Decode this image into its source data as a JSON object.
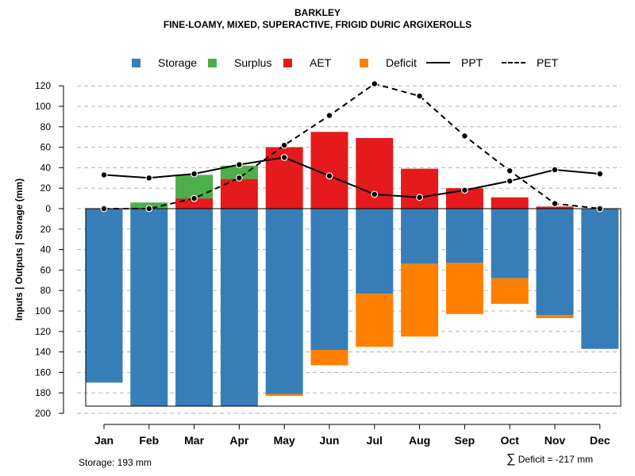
{
  "title": "BARKLEY",
  "subtitle": "FINE-LOAMY, MIXED, SUPERACTIVE, FRIGID DURIC ARGIXEROLLS",
  "legend": {
    "storage": "Storage",
    "surplus": "Surplus",
    "aet": "AET",
    "deficit": "Deficit",
    "ppt": "PPT",
    "pet": "PET"
  },
  "colors": {
    "storage": "#377EB8",
    "surplus": "#4DAF4A",
    "aet": "#E41A1C",
    "deficit": "#FF7F00",
    "grid": "#b0b0b0"
  },
  "footer": {
    "storage_note": "Storage: 193 mm",
    "deficit_note": "Deficit = -217 mm",
    "sum_symbol": "∑"
  },
  "chart_data": {
    "type": "bar",
    "title": "BARKLEY",
    "subtitle": "FINE-LOAMY, MIXED, SUPERACTIVE, FRIGID DURIC ARGIXEROLLS",
    "ylabel": "Inputs | Outputs | Storage     (mm)",
    "xlabel": "",
    "ylim": [
      -200,
      130
    ],
    "yticks": [
      120,
      100,
      80,
      60,
      40,
      20,
      0,
      -20,
      -40,
      -60,
      -80,
      -100,
      -120,
      -140,
      -160,
      -180,
      -200
    ],
    "ytick_labels": [
      "120",
      "100",
      "80",
      "60",
      "40",
      "20",
      "0",
      "20",
      "40",
      "60",
      "80",
      "100",
      "120",
      "140",
      "160",
      "180",
      "200"
    ],
    "grid": true,
    "categories": [
      "Jan",
      "Feb",
      "Mar",
      "Apr",
      "May",
      "Jun",
      "Jul",
      "Aug",
      "Sep",
      "Oct",
      "Nov",
      "Dec"
    ],
    "above_axis_stack": [
      {
        "name": "AET",
        "values": [
          0,
          0,
          10,
          29,
          60,
          75,
          69,
          39,
          20,
          11,
          2,
          0
        ]
      },
      {
        "name": "Surplus",
        "values": [
          0,
          6,
          23,
          13,
          0,
          0,
          0,
          0,
          0,
          0,
          0,
          0
        ]
      }
    ],
    "below_axis_stack": [
      {
        "name": "Storage",
        "values": [
          170,
          193,
          193,
          193,
          181,
          138,
          83,
          54,
          53,
          68,
          104,
          137
        ]
      },
      {
        "name": "Deficit",
        "values": [
          0,
          0,
          0,
          0,
          2,
          15,
          52,
          71,
          50,
          25,
          3,
          0
        ]
      }
    ],
    "series": [
      {
        "name": "PPT",
        "style": "solid",
        "values": [
          33,
          30,
          34,
          43,
          50,
          32,
          14,
          11,
          18,
          27,
          38,
          34
        ]
      },
      {
        "name": "PET",
        "style": "dashed",
        "values": [
          0,
          0,
          10,
          30,
          62,
          91,
          122,
          110,
          71,
          37,
          5,
          0
        ]
      }
    ],
    "storage_capacity": 193
  }
}
